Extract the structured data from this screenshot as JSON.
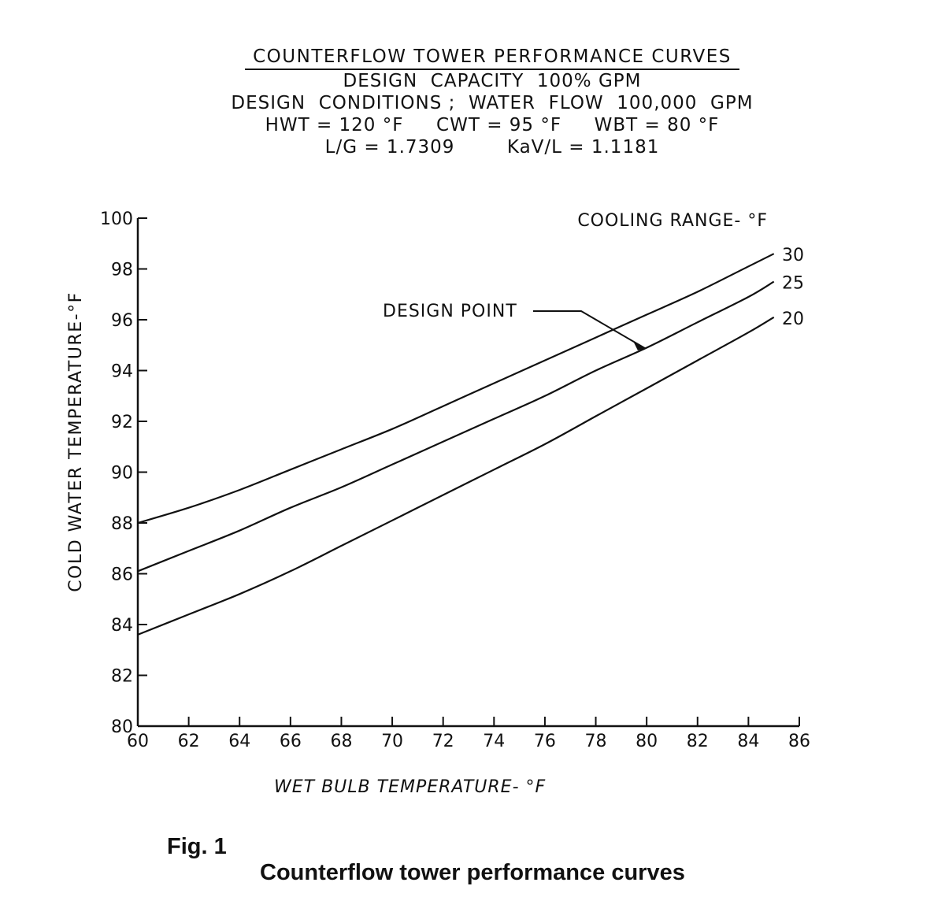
{
  "figure": {
    "title": "COUNTERFLOW  TOWER  PERFORMANCE  CURVES",
    "subtitle_lines": [
      "DESIGN  CAPACITY  100% GPM",
      "DESIGN  CONDITIONS ;  WATER  FLOW  100,000  GPM",
      "HWT = 120 °F     CWT = 95 °F     WBT = 80 °F",
      "L/G = 1.7309        KaV/L = 1.1181"
    ],
    "caption_label": "Fig. 1",
    "caption_text": "Counterflow tower performance curves"
  },
  "chart_data": {
    "type": "line",
    "xlabel": "WET BULB TEMPERATURE- °F",
    "ylabel": "COLD  WATER  TEMPERATURE-°F",
    "xlim": [
      60,
      86
    ],
    "ylim": [
      80,
      100
    ],
    "x_ticks": [
      60,
      62,
      64,
      66,
      68,
      70,
      72,
      74,
      76,
      78,
      80,
      82,
      84,
      86
    ],
    "y_ticks": [
      80,
      82,
      84,
      86,
      88,
      90,
      92,
      94,
      96,
      98,
      100
    ],
    "grid": false,
    "legend_title": "COOLING RANGE- °F",
    "series": [
      {
        "name": "30",
        "x": [
          60,
          62,
          64,
          66,
          68,
          70,
          72,
          74,
          76,
          78,
          80,
          82,
          84,
          85
        ],
        "y": [
          88.0,
          88.6,
          89.3,
          90.1,
          90.9,
          91.7,
          92.6,
          93.5,
          94.4,
          95.3,
          96.2,
          97.1,
          98.1,
          98.6
        ]
      },
      {
        "name": "25",
        "x": [
          60,
          62,
          64,
          66,
          68,
          70,
          72,
          74,
          76,
          78,
          80,
          82,
          84,
          85
        ],
        "y": [
          86.1,
          86.9,
          87.7,
          88.6,
          89.4,
          90.3,
          91.2,
          92.1,
          93.0,
          94.0,
          94.9,
          95.9,
          96.9,
          97.5
        ]
      },
      {
        "name": "20",
        "x": [
          60,
          62,
          64,
          66,
          68,
          70,
          72,
          74,
          76,
          78,
          80,
          82,
          84,
          85
        ],
        "y": [
          83.6,
          84.4,
          85.2,
          86.1,
          87.1,
          88.1,
          89.1,
          90.1,
          91.1,
          92.2,
          93.3,
          94.4,
          95.5,
          96.1
        ]
      }
    ],
    "annotation": {
      "text": "DESIGN POINT",
      "x": 80,
      "y": 95
    }
  }
}
